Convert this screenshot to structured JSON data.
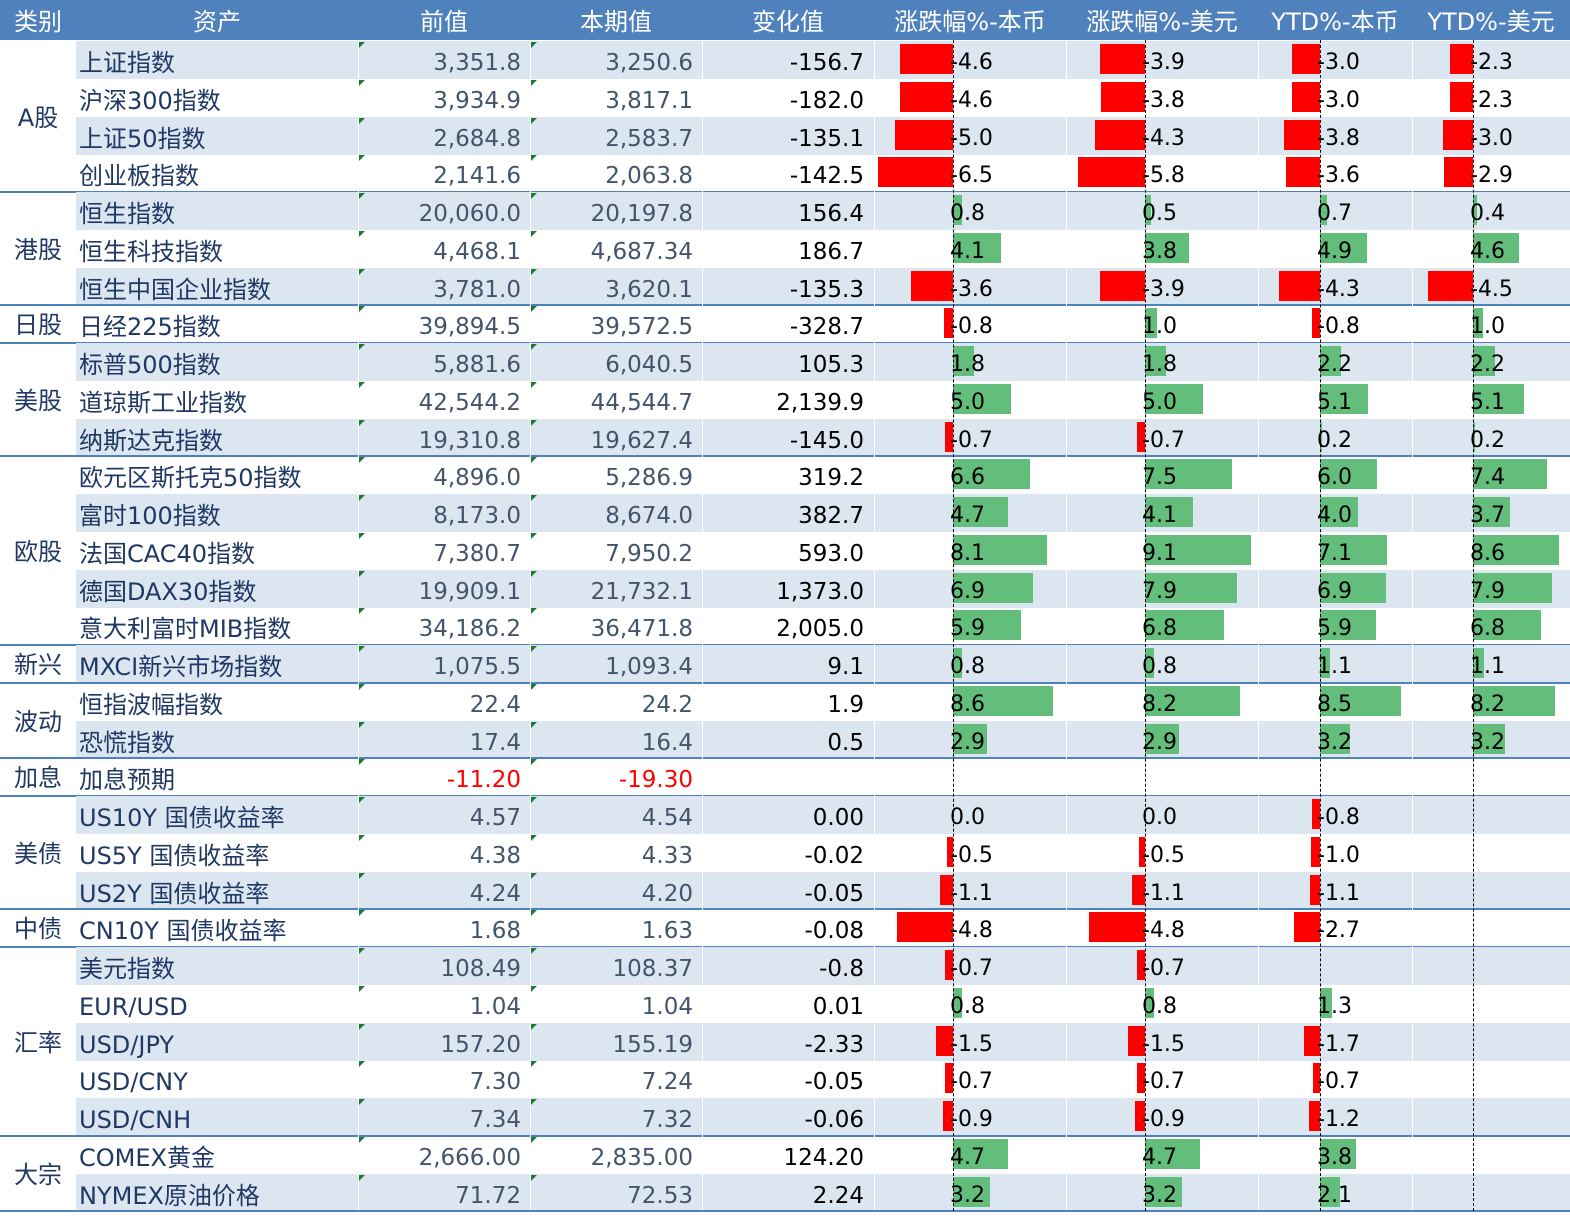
{
  "headers": [
    "类别",
    "资产",
    "前值",
    "本期值",
    "变化值",
    "涨跌幅%-本币",
    "涨跌幅%-美元",
    "YTD%-本币",
    "YTD%-美元"
  ],
  "colors": {
    "header": "#4f81bd",
    "band": "#dce6f1",
    "negative_bar": "#ff0000",
    "positive_bar": "#63be7b",
    "negative_text": "#ff0000"
  },
  "groups": [
    {
      "category": "A股",
      "rows": [
        {
          "asset": "上证指数",
          "prev": "3,351.8",
          "curr": "3,250.6",
          "change": "-156.7",
          "chg_local": -4.6,
          "chg_usd": -3.9,
          "ytd_local": -3.0,
          "ytd_usd": -2.3,
          "chg_local_label": "-4.6",
          "chg_usd_label": "-3.9",
          "ytd_local_label": "-3.0",
          "ytd_usd_label": "-2.3"
        },
        {
          "asset": "沪深300指数",
          "prev": "3,934.9",
          "curr": "3,817.1",
          "change": "-182.0",
          "chg_local": -4.6,
          "chg_usd": -3.8,
          "ytd_local": -3.0,
          "ytd_usd": -2.3,
          "chg_local_label": "-4.6",
          "chg_usd_label": "-3.8",
          "ytd_local_label": "-3.0",
          "ytd_usd_label": "-2.3"
        },
        {
          "asset": "上证50指数",
          "prev": "2,684.8",
          "curr": "2,583.7",
          "change": "-135.1",
          "chg_local": -5.0,
          "chg_usd": -4.3,
          "ytd_local": -3.8,
          "ytd_usd": -3.0,
          "chg_local_label": "-5.0",
          "chg_usd_label": "-4.3",
          "ytd_local_label": "-3.8",
          "ytd_usd_label": "-3.0"
        },
        {
          "asset": "创业板指数",
          "prev": "2,141.6",
          "curr": "2,063.8",
          "change": "-142.5",
          "chg_local": -6.5,
          "chg_usd": -5.8,
          "ytd_local": -3.6,
          "ytd_usd": -2.9,
          "chg_local_label": "-6.5",
          "chg_usd_label": "-5.8",
          "ytd_local_label": "-3.6",
          "ytd_usd_label": "-2.9"
        }
      ]
    },
    {
      "category": "港股",
      "rows": [
        {
          "asset": "恒生指数",
          "prev": "20,060.0",
          "curr": "20,197.8",
          "change": "156.4",
          "chg_local": 0.8,
          "chg_usd": 0.5,
          "ytd_local": 0.7,
          "ytd_usd": 0.4,
          "chg_local_label": "0.8",
          "chg_usd_label": "0.5",
          "ytd_local_label": "0.7",
          "ytd_usd_label": "0.4"
        },
        {
          "asset": "恒生科技指数",
          "prev": "4,468.1",
          "curr": "4,687.34",
          "change": "186.7",
          "chg_local": 4.1,
          "chg_usd": 3.8,
          "ytd_local": 4.9,
          "ytd_usd": 4.6,
          "chg_local_label": "4.1",
          "chg_usd_label": "3.8",
          "ytd_local_label": "4.9",
          "ytd_usd_label": "4.6"
        },
        {
          "asset": "恒生中国企业指数",
          "prev": "3,781.0",
          "curr": "3,620.1",
          "change": "-135.3",
          "chg_local": -3.6,
          "chg_usd": -3.9,
          "ytd_local": -4.3,
          "ytd_usd": -4.5,
          "chg_local_label": "-3.6",
          "chg_usd_label": "-3.9",
          "ytd_local_label": "-4.3",
          "ytd_usd_label": "-4.5"
        }
      ]
    },
    {
      "category": "日股",
      "rows": [
        {
          "asset": "日经225指数",
          "prev": "39,894.5",
          "curr": "39,572.5",
          "change": "-328.7",
          "chg_local": -0.8,
          "chg_usd": 1.0,
          "ytd_local": -0.8,
          "ytd_usd": 1.0,
          "chg_local_label": "-0.8",
          "chg_usd_label": "1.0",
          "ytd_local_label": "-0.8",
          "ytd_usd_label": "1.0"
        }
      ]
    },
    {
      "category": "美股",
      "rows": [
        {
          "asset": "标普500指数",
          "prev": "5,881.6",
          "curr": "6,040.5",
          "change": "105.3",
          "chg_local": 1.8,
          "chg_usd": 1.8,
          "ytd_local": 2.2,
          "ytd_usd": 2.2,
          "chg_local_label": "1.8",
          "chg_usd_label": "1.8",
          "ytd_local_label": "2.2",
          "ytd_usd_label": "2.2"
        },
        {
          "asset": "道琼斯工业指数",
          "prev": "42,544.2",
          "curr": "44,544.7",
          "change": "2,139.9",
          "chg_local": 5.0,
          "chg_usd": 5.0,
          "ytd_local": 5.1,
          "ytd_usd": 5.1,
          "chg_local_label": "5.0",
          "chg_usd_label": "5.0",
          "ytd_local_label": "5.1",
          "ytd_usd_label": "5.1"
        },
        {
          "asset": "纳斯达克指数",
          "prev": "19,310.8",
          "curr": "19,627.4",
          "change": "-145.0",
          "chg_local": -0.7,
          "chg_usd": -0.7,
          "ytd_local": 0.2,
          "ytd_usd": 0.2,
          "chg_local_label": "-0.7",
          "chg_usd_label": "-0.7",
          "ytd_local_label": "0.2",
          "ytd_usd_label": "0.2"
        }
      ]
    },
    {
      "category": "欧股",
      "rows": [
        {
          "asset": "欧元区斯托克50指数",
          "prev": "4,896.0",
          "curr": "5,286.9",
          "change": "319.2",
          "chg_local": 6.6,
          "chg_usd": 7.5,
          "ytd_local": 6.0,
          "ytd_usd": 7.4,
          "chg_local_label": "6.6",
          "chg_usd_label": "7.5",
          "ytd_local_label": "6.0",
          "ytd_usd_label": "7.4"
        },
        {
          "asset": "富时100指数",
          "prev": "8,173.0",
          "curr": "8,674.0",
          "change": "382.7",
          "chg_local": 4.7,
          "chg_usd": 4.1,
          "ytd_local": 4.0,
          "ytd_usd": 3.7,
          "chg_local_label": "4.7",
          "chg_usd_label": "4.1",
          "ytd_local_label": "4.0",
          "ytd_usd_label": "3.7"
        },
        {
          "asset": "法国CAC40指数",
          "prev": "7,380.7",
          "curr": "7,950.2",
          "change": "593.0",
          "chg_local": 8.1,
          "chg_usd": 9.1,
          "ytd_local": 7.1,
          "ytd_usd": 8.6,
          "chg_local_label": "8.1",
          "chg_usd_label": "9.1",
          "ytd_local_label": "7.1",
          "ytd_usd_label": "8.6"
        },
        {
          "asset": "德国DAX30指数",
          "prev": "19,909.1",
          "curr": "21,732.1",
          "change": "1,373.0",
          "chg_local": 6.9,
          "chg_usd": 7.9,
          "ytd_local": 6.9,
          "ytd_usd": 7.9,
          "chg_local_label": "6.9",
          "chg_usd_label": "7.9",
          "ytd_local_label": "6.9",
          "ytd_usd_label": "7.9"
        },
        {
          "asset": "意大利富时MIB指数",
          "prev": "34,186.2",
          "curr": "36,471.8",
          "change": "2,005.0",
          "chg_local": 5.9,
          "chg_usd": 6.8,
          "ytd_local": 5.9,
          "ytd_usd": 6.8,
          "chg_local_label": "5.9",
          "chg_usd_label": "6.8",
          "ytd_local_label": "5.9",
          "ytd_usd_label": "6.8"
        }
      ]
    },
    {
      "category": "新兴",
      "rows": [
        {
          "asset": "MXCI新兴市场指数",
          "prev": "1,075.5",
          "curr": "1,093.4",
          "change": "9.1",
          "chg_local": 0.8,
          "chg_usd": 0.8,
          "ytd_local": 1.1,
          "ytd_usd": 1.1,
          "chg_local_label": "0.8",
          "chg_usd_label": "0.8",
          "ytd_local_label": "1.1",
          "ytd_usd_label": "1.1"
        }
      ]
    },
    {
      "category": "波动",
      "rows": [
        {
          "asset": "恒指波幅指数",
          "prev": "22.4",
          "curr": "24.2",
          "change": "1.9",
          "chg_local": 8.6,
          "chg_usd": 8.2,
          "ytd_local": 8.5,
          "ytd_usd": 8.2,
          "chg_local_label": "8.6",
          "chg_usd_label": "8.2",
          "ytd_local_label": "8.5",
          "ytd_usd_label": "8.2"
        },
        {
          "asset": "恐慌指数",
          "prev": "17.4",
          "curr": "16.4",
          "change": "0.5",
          "chg_local": 2.9,
          "chg_usd": 2.9,
          "ytd_local": 3.2,
          "ytd_usd": 3.2,
          "chg_local_label": "2.9",
          "chg_usd_label": "2.9",
          "ytd_local_label": "3.2",
          "ytd_usd_label": "3.2"
        }
      ]
    },
    {
      "category": "加息",
      "rows": [
        {
          "asset": "加息预期",
          "prev": "-11.20",
          "curr": "-19.30",
          "change": "",
          "chg_local": null,
          "chg_usd": null,
          "ytd_local": null,
          "ytd_usd": null,
          "chg_local_label": "",
          "chg_usd_label": "",
          "ytd_local_label": "",
          "ytd_usd_label": "",
          "negative_text": true
        }
      ]
    },
    {
      "category": "美债",
      "rows": [
        {
          "asset": "US10Y 国债收益率",
          "prev": "4.57",
          "curr": "4.54",
          "change": "0.00",
          "chg_local": 0.0,
          "chg_usd": 0.0,
          "ytd_local": -0.8,
          "ytd_usd": null,
          "chg_local_label": "0.0",
          "chg_usd_label": "0.0",
          "ytd_local_label": "-0.8",
          "ytd_usd_label": ""
        },
        {
          "asset": "US5Y 国债收益率",
          "prev": "4.38",
          "curr": "4.33",
          "change": "-0.02",
          "chg_local": -0.5,
          "chg_usd": -0.5,
          "ytd_local": -1.0,
          "ytd_usd": null,
          "chg_local_label": "-0.5",
          "chg_usd_label": "-0.5",
          "ytd_local_label": "-1.0",
          "ytd_usd_label": ""
        },
        {
          "asset": "US2Y 国债收益率",
          "prev": "4.24",
          "curr": "4.20",
          "change": "-0.05",
          "chg_local": -1.1,
          "chg_usd": -1.1,
          "ytd_local": -1.1,
          "ytd_usd": null,
          "chg_local_label": "-1.1",
          "chg_usd_label": "-1.1",
          "ytd_local_label": "-1.1",
          "ytd_usd_label": ""
        }
      ]
    },
    {
      "category": "中债",
      "rows": [
        {
          "asset": "CN10Y 国债收益率",
          "prev": "1.68",
          "curr": "1.63",
          "change": "-0.08",
          "chg_local": -4.8,
          "chg_usd": -4.8,
          "ytd_local": -2.7,
          "ytd_usd": null,
          "chg_local_label": "-4.8",
          "chg_usd_label": "-4.8",
          "ytd_local_label": "-2.7",
          "ytd_usd_label": ""
        }
      ]
    },
    {
      "category": "汇率",
      "rows": [
        {
          "asset": "美元指数",
          "prev": "108.49",
          "curr": "108.37",
          "change": "-0.8",
          "chg_local": -0.7,
          "chg_usd": -0.7,
          "ytd_local": null,
          "ytd_usd": null,
          "chg_local_label": "-0.7",
          "chg_usd_label": "-0.7",
          "ytd_local_label": "",
          "ytd_usd_label": ""
        },
        {
          "asset": "EUR/USD",
          "prev": "1.04",
          "curr": "1.04",
          "change": "0.01",
          "chg_local": 0.8,
          "chg_usd": 0.8,
          "ytd_local": 1.3,
          "ytd_usd": null,
          "chg_local_label": "0.8",
          "chg_usd_label": "0.8",
          "ytd_local_label": "1.3",
          "ytd_usd_label": ""
        },
        {
          "asset": "USD/JPY",
          "prev": "157.20",
          "curr": "155.19",
          "change": "-2.33",
          "chg_local": -1.5,
          "chg_usd": -1.5,
          "ytd_local": -1.7,
          "ytd_usd": null,
          "chg_local_label": "-1.5",
          "chg_usd_label": "-1.5",
          "ytd_local_label": "-1.7",
          "ytd_usd_label": ""
        },
        {
          "asset": "USD/CNY",
          "prev": "7.30",
          "curr": "7.24",
          "change": "-0.05",
          "chg_local": -0.7,
          "chg_usd": -0.7,
          "ytd_local": -0.7,
          "ytd_usd": null,
          "chg_local_label": "-0.7",
          "chg_usd_label": "-0.7",
          "ytd_local_label": "-0.7",
          "ytd_usd_label": ""
        },
        {
          "asset": "USD/CNH",
          "prev": "7.34",
          "curr": "7.32",
          "change": "-0.06",
          "chg_local": -0.9,
          "chg_usd": -0.9,
          "ytd_local": -1.2,
          "ytd_usd": null,
          "chg_local_label": "-0.9",
          "chg_usd_label": "-0.9",
          "ytd_local_label": "-1.2",
          "ytd_usd_label": ""
        }
      ]
    },
    {
      "category": "大宗",
      "rows": [
        {
          "asset": "COMEX黄金",
          "prev": "2,666.00",
          "curr": "2,835.00",
          "change": "124.20",
          "chg_local": 4.7,
          "chg_usd": 4.7,
          "ytd_local": 3.8,
          "ytd_usd": null,
          "chg_local_label": "4.7",
          "chg_usd_label": "4.7",
          "ytd_local_label": "3.8",
          "ytd_usd_label": ""
        },
        {
          "asset": "NYMEX原油价格",
          "prev": "71.72",
          "curr": "72.53",
          "change": "2.24",
          "chg_local": 3.2,
          "chg_usd": 3.2,
          "ytd_local": 2.1,
          "ytd_usd": null,
          "chg_local_label": "3.2",
          "chg_usd_label": "3.2",
          "ytd_local_label": "2.1",
          "ytd_usd_label": ""
        }
      ]
    }
  ]
}
